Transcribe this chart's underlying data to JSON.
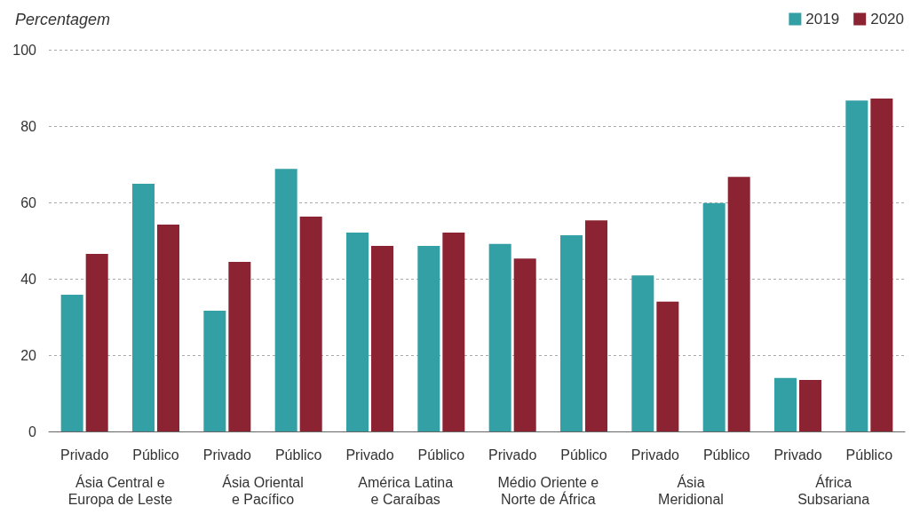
{
  "chart_data": {
    "type": "bar",
    "ylabel": "Percentagem",
    "categories": [
      "Privado",
      "Público",
      "Privado",
      "Público",
      "Privado",
      "Público",
      "Privado",
      "Público",
      "Privado",
      "Público",
      "Privado",
      "Público"
    ],
    "annotations": [
      "Ásia Central e\nEuropa de Leste",
      "Ásia Oriental\ne Pacífico",
      "América Latina\ne Caraíbas",
      "Médio Oriente e\nNorte de África",
      "Ásia\nMeridional",
      "África\nSubsariana"
    ],
    "series": [
      {
        "name": "2019",
        "color": "#33a0a5",
        "values": [
          35.8,
          64.9,
          31.6,
          68.8,
          52.1,
          48.6,
          49.1,
          51.4,
          40.9,
          59.8,
          14.0,
          86.7
        ]
      },
      {
        "name": "2020",
        "color": "#8b2332",
        "values": [
          46.5,
          54.2,
          44.4,
          56.3,
          48.6,
          52.1,
          45.3,
          55.3,
          34.0,
          66.7,
          13.5,
          87.2
        ]
      }
    ],
    "ylim": [
      0,
      100
    ],
    "yticks": [
      0,
      20,
      40,
      60,
      80,
      100
    ],
    "grid": "y",
    "legend": "top right"
  }
}
